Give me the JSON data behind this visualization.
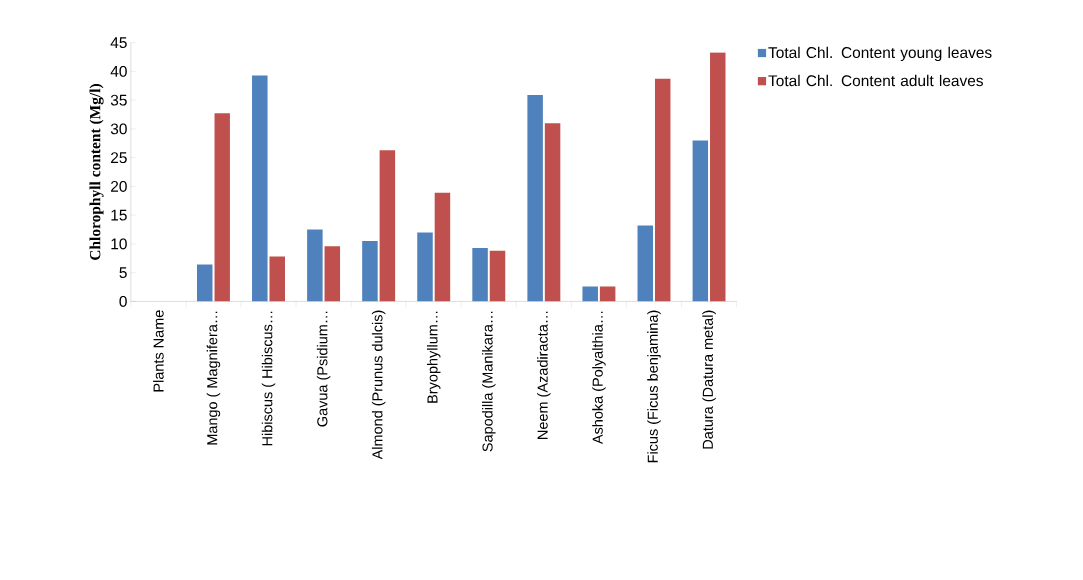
{
  "chart_data": {
    "type": "bar",
    "ylabel": "Chlorophyll  content (Mg/l)",
    "categories": [
      "Plants Name",
      "Mango ( Magnifera…",
      "Hibiscus ( Hibiscus…",
      "Gavua (Psidium…",
      "Almond  (Prunus dulcis)",
      "Bryophyllum…",
      "Sapodilla (Manikara…",
      "Neem (Azadiracta…",
      "Ashoka  (Polyalthia…",
      "Ficus (Ficus benjamina)",
      "Datura (Datura metal)"
    ],
    "series": [
      {
        "name": "Total Chl. Content young leaves",
        "color": "#4f81bd",
        "values": [
          null,
          6.4,
          39.3,
          12.5,
          10.5,
          12.0,
          9.3,
          35.9,
          2.6,
          13.2,
          28.0
        ]
      },
      {
        "name": "Total Chl. Content adult leaves",
        "color": "#c0504d",
        "values": [
          null,
          32.7,
          7.8,
          9.6,
          26.3,
          18.9,
          8.8,
          31.0,
          2.6,
          38.7,
          43.3
        ]
      }
    ],
    "ylim": [
      0,
      45
    ],
    "yticks": [
      0,
      5,
      10,
      15,
      20,
      25,
      30,
      35,
      40,
      45
    ],
    "grid": false,
    "legend": "right"
  }
}
